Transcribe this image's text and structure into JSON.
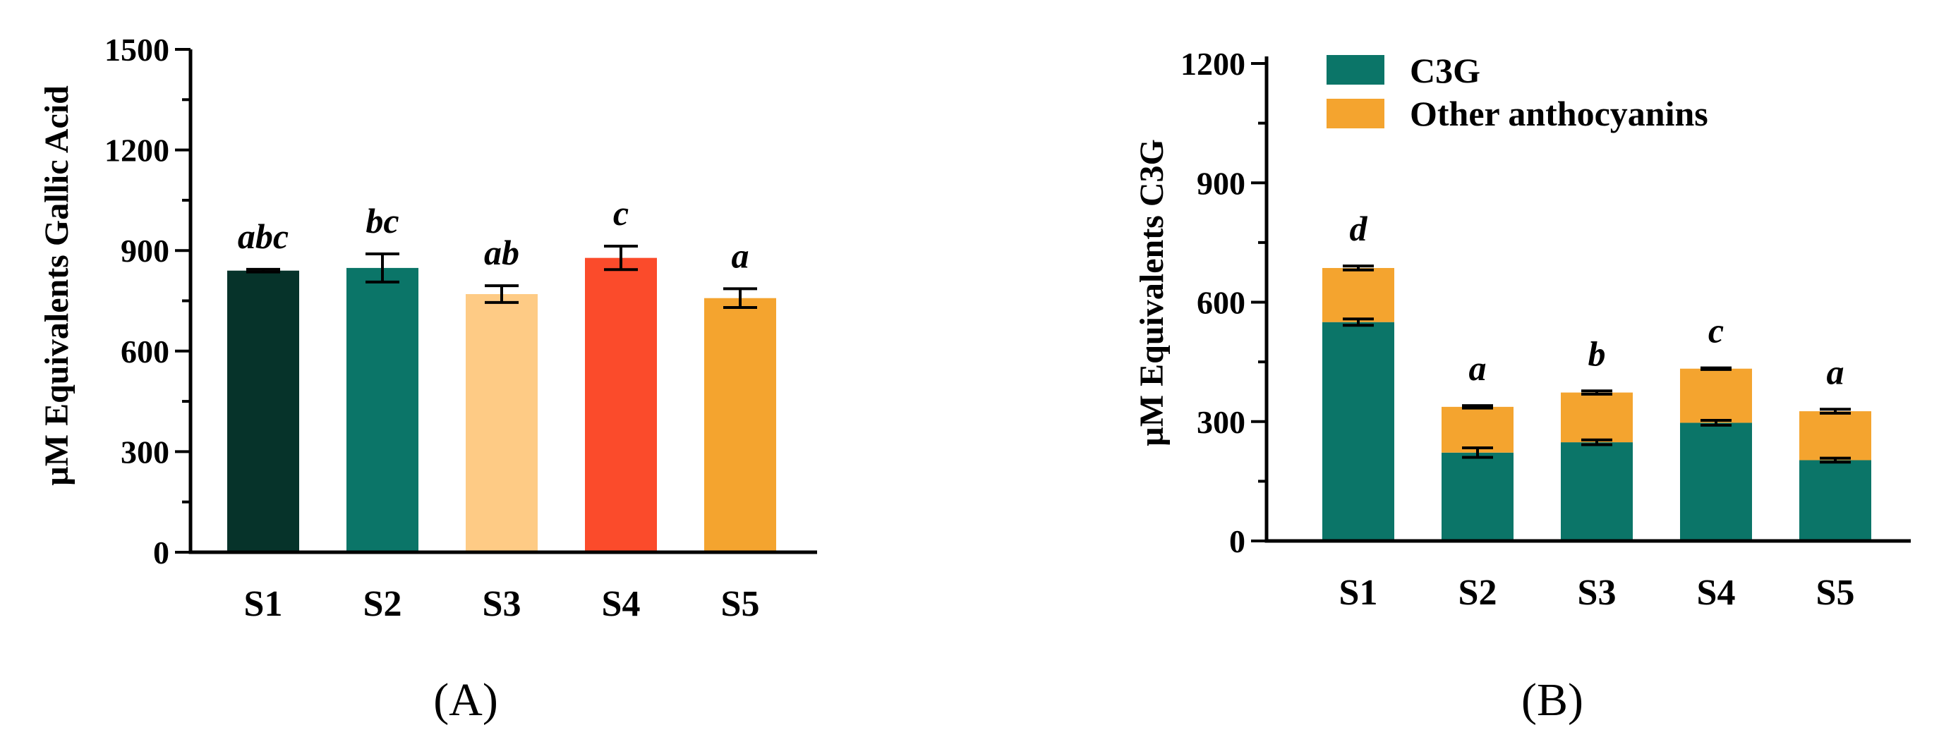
{
  "chart_data": [
    {
      "type": "bar",
      "panel_label": "(A)",
      "categories": [
        "S1",
        "S2",
        "S3",
        "S4",
        "S5"
      ],
      "values": [
        840,
        848,
        770,
        878,
        758
      ],
      "errors": [
        4,
        42,
        25,
        35,
        28
      ],
      "bar_colors": [
        "#06332a",
        "#0b7568",
        "#fecb85",
        "#fb4b2b",
        "#f4a42f"
      ],
      "significance": [
        "abc",
        "bc",
        "ab",
        "c",
        "a"
      ],
      "title": "",
      "xlabel": "",
      "ylabel": "µM Equivalents Gallic Acid",
      "ylim": [
        0,
        1500
      ],
      "yticks": [
        0,
        300,
        600,
        900,
        1200,
        1500
      ],
      "ytick_labels": [
        "0",
        "300",
        "600",
        "900",
        "1200",
        "1500"
      ],
      "grid": false
    },
    {
      "type": "bar",
      "stacked": true,
      "panel_label": "(B)",
      "categories": [
        "S1",
        "S2",
        "S3",
        "S4",
        "S5"
      ],
      "series": [
        {
          "name": "C3G",
          "color": "#0b7568",
          "values": [
            550,
            222,
            248,
            297,
            203
          ],
          "errors": [
            8,
            12,
            6,
            6,
            5
          ]
        },
        {
          "name": "Other anthocyanins",
          "color": "#f4a42f",
          "values": [
            136,
            115,
            125,
            136,
            123
          ],
          "errors": [
            5,
            3,
            4,
            2,
            5
          ]
        }
      ],
      "significance": [
        "d",
        "a",
        "b",
        "c",
        "a"
      ],
      "title": "",
      "xlabel": "",
      "ylabel": "µM Equivalents C3G",
      "ylim": [
        0,
        1200
      ],
      "yticks": [
        0,
        300,
        600,
        900,
        1200
      ],
      "ytick_labels": [
        "0",
        "300",
        "600",
        "900",
        "1200"
      ],
      "legend_position": "top-left",
      "grid": false
    }
  ]
}
